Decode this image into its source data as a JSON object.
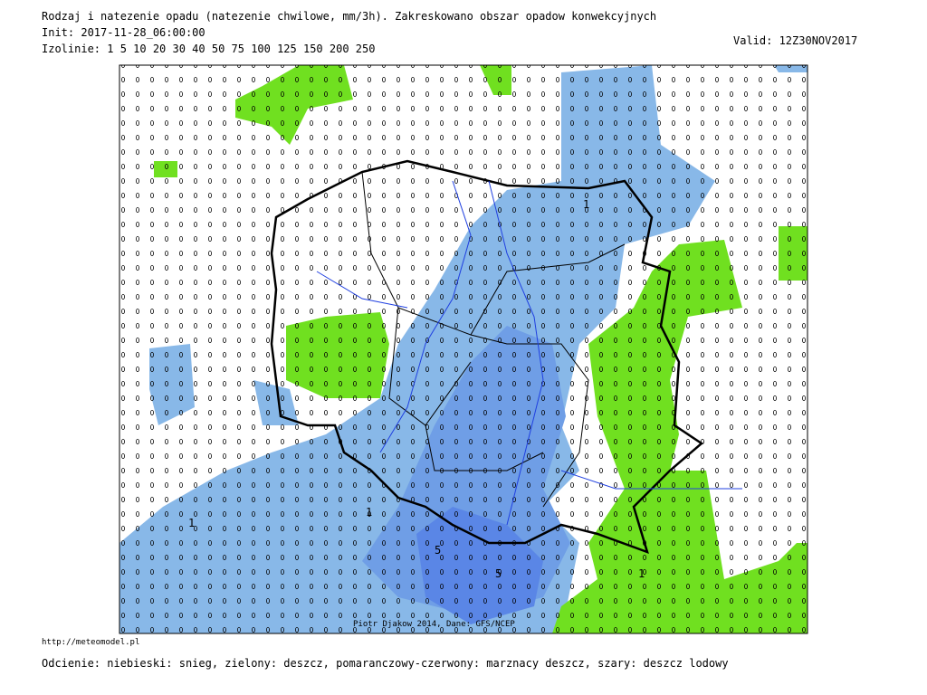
{
  "header": {
    "title": "Rodzaj i natezenie opadu (natezenie chwilowe, mm/3h). Zakreskowano obszar opadow konwekcyjnych",
    "init": "Init: 2017-11-28_06:00:00",
    "isolines": "Izolinie:  1 5 10 20 30 40 50 75 100 125 150 200 250",
    "valid": "Valid: 12Z30NOV2017"
  },
  "map": {
    "credit": "Piotr Djakow 2014, Dane: GFS/NCEP",
    "contour_labels": [
      "1",
      "1",
      "1",
      "1",
      "5",
      "5"
    ]
  },
  "footer": {
    "url": "http://meteomodel.pl",
    "legend": "Odcienie: niebieski: snieg, zielony: deszcz, pomaranczowy-czerwony: marznacy deszcz, szary: deszcz lodowy"
  }
}
